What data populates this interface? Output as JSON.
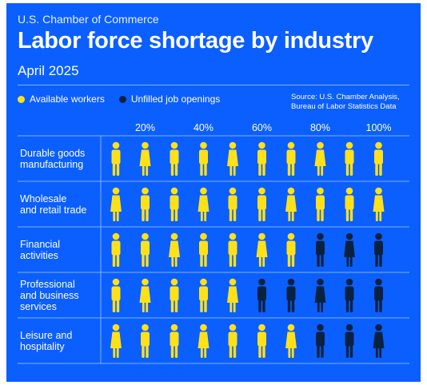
{
  "brand": "U.S. Chamber of Commerce",
  "title": "Labor force shortage by industry",
  "subtitle": "April 2025",
  "legend": {
    "available": "Available workers",
    "unfilled": "Unfilled job openings"
  },
  "source_lines": [
    "Source: U.S. Chamber Analysis,",
    "Bureau of Labor Statistics Data"
  ],
  "colors": {
    "background": "#0B5FFF",
    "available": "#FFE11A",
    "unfilled": "#0A2240",
    "divider": "#7FB0FF"
  },
  "chart_data": {
    "type": "table",
    "icons_per_row": 10,
    "x_ticks": [
      "20%",
      "40%",
      "60%",
      "80%",
      "100%"
    ],
    "series": [
      {
        "name": "Available workers"
      },
      {
        "name": "Unfilled job openings"
      }
    ],
    "rows": [
      {
        "label": [
          "Durable goods",
          "manufacturing"
        ],
        "available": 10,
        "unfilled": 0
      },
      {
        "label": [
          "Wholesale",
          "and retail trade"
        ],
        "available": 10,
        "unfilled": 0
      },
      {
        "label": [
          "Financial",
          "activities"
        ],
        "available": 7,
        "unfilled": 3
      },
      {
        "label": [
          "Professional",
          "and business",
          "services"
        ],
        "available": 5,
        "unfilled": 5
      },
      {
        "label": [
          "Leisure and",
          "hospitality"
        ],
        "available": 7,
        "unfilled": 3
      }
    ]
  }
}
